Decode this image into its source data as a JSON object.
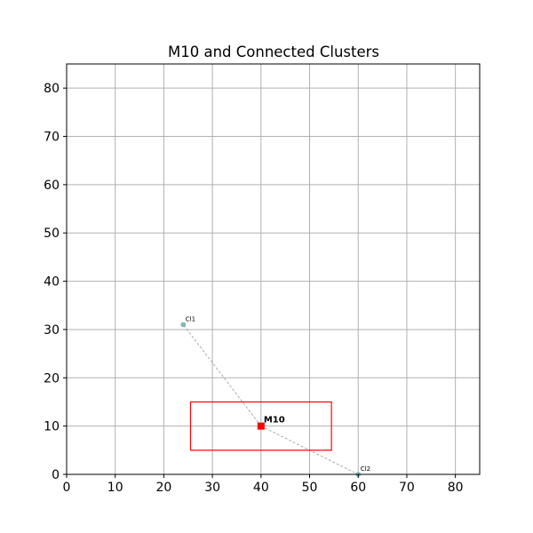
{
  "chart_data": {
    "type": "scatter",
    "title": "M10 and Connected Clusters",
    "xlabel": "",
    "ylabel": "",
    "xlim": [
      0,
      85
    ],
    "ylim": [
      0,
      85
    ],
    "xticks": [
      0,
      10,
      20,
      30,
      40,
      50,
      60,
      70,
      80
    ],
    "yticks": [
      0,
      10,
      20,
      30,
      40,
      50,
      60,
      70,
      80
    ],
    "grid": true,
    "points": [
      {
        "label": "M10",
        "x": 40,
        "y": 10,
        "color": "#ff0000",
        "marker": "square",
        "bold": true
      },
      {
        "label": "Cl1",
        "x": 24,
        "y": 31,
        "color": "#7fbfbf",
        "marker": "circle",
        "bold": false
      },
      {
        "label": "Cl2",
        "x": 60,
        "y": 0,
        "color": "#7fbfbf",
        "marker": "circle",
        "bold": false
      }
    ],
    "connections": [
      {
        "from": "M10",
        "to": "Cl1",
        "style": "dashed",
        "color": "#aaaaaa"
      },
      {
        "from": "M10",
        "to": "Cl2",
        "style": "dashed",
        "color": "#aaaaaa"
      }
    ],
    "region": {
      "x0": 25.5,
      "x1": 54.5,
      "y0": 5,
      "y1": 15,
      "color": "#ff0000"
    }
  }
}
